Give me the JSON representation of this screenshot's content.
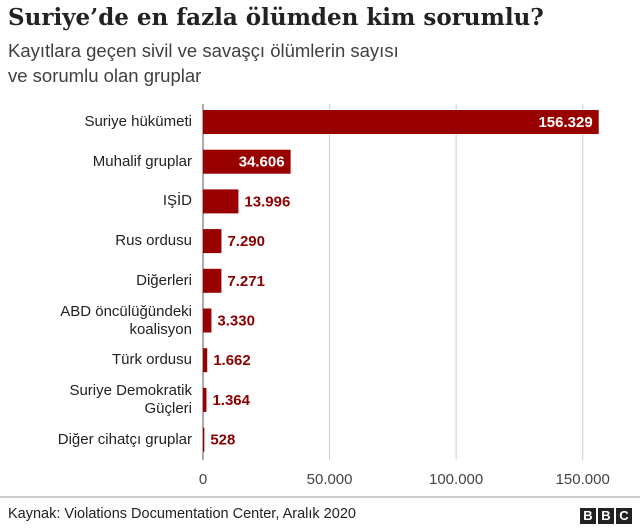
{
  "chart_data": {
    "type": "bar",
    "orientation": "horizontal",
    "title": "Suriye’de en fazla ölümden kim sorumlu?",
    "subtitle": "Kayıtlara geçen sivil ve savaşçı ölümlerin sayısı\nve sorumlu olan gruplar",
    "categories": [
      "Suriye hükümeti",
      "Muhalif gruplar",
      "IŞİD",
      "Rus ordusu",
      "Diğerleri",
      "ABD öncülüğündeki\nkoalisyon",
      "Türk ordusu",
      "Suriye Demokratik\nGüçleri",
      "Diğer cihatçı gruplar"
    ],
    "values": [
      156329,
      34606,
      13996,
      7290,
      7271,
      3330,
      1662,
      1364,
      528
    ],
    "value_labels": [
      "156.329",
      "34.606",
      "13.996",
      "7.290",
      "7.271",
      "3.330",
      "1.662",
      "1.364",
      "528"
    ],
    "color": "#990000",
    "xlim": [
      0,
      160000
    ],
    "xticks": [
      0,
      {
        "value": 50000,
        "label": "50.000"
      },
      {
        "value": 100000,
        "label": "100.000"
      },
      {
        "value": 150000,
        "label": "150.000"
      }
    ],
    "grid": true,
    "source": "Kaynak: Violations Documentation Center, Aralık 2020",
    "logo": [
      "B",
      "B",
      "C"
    ]
  }
}
